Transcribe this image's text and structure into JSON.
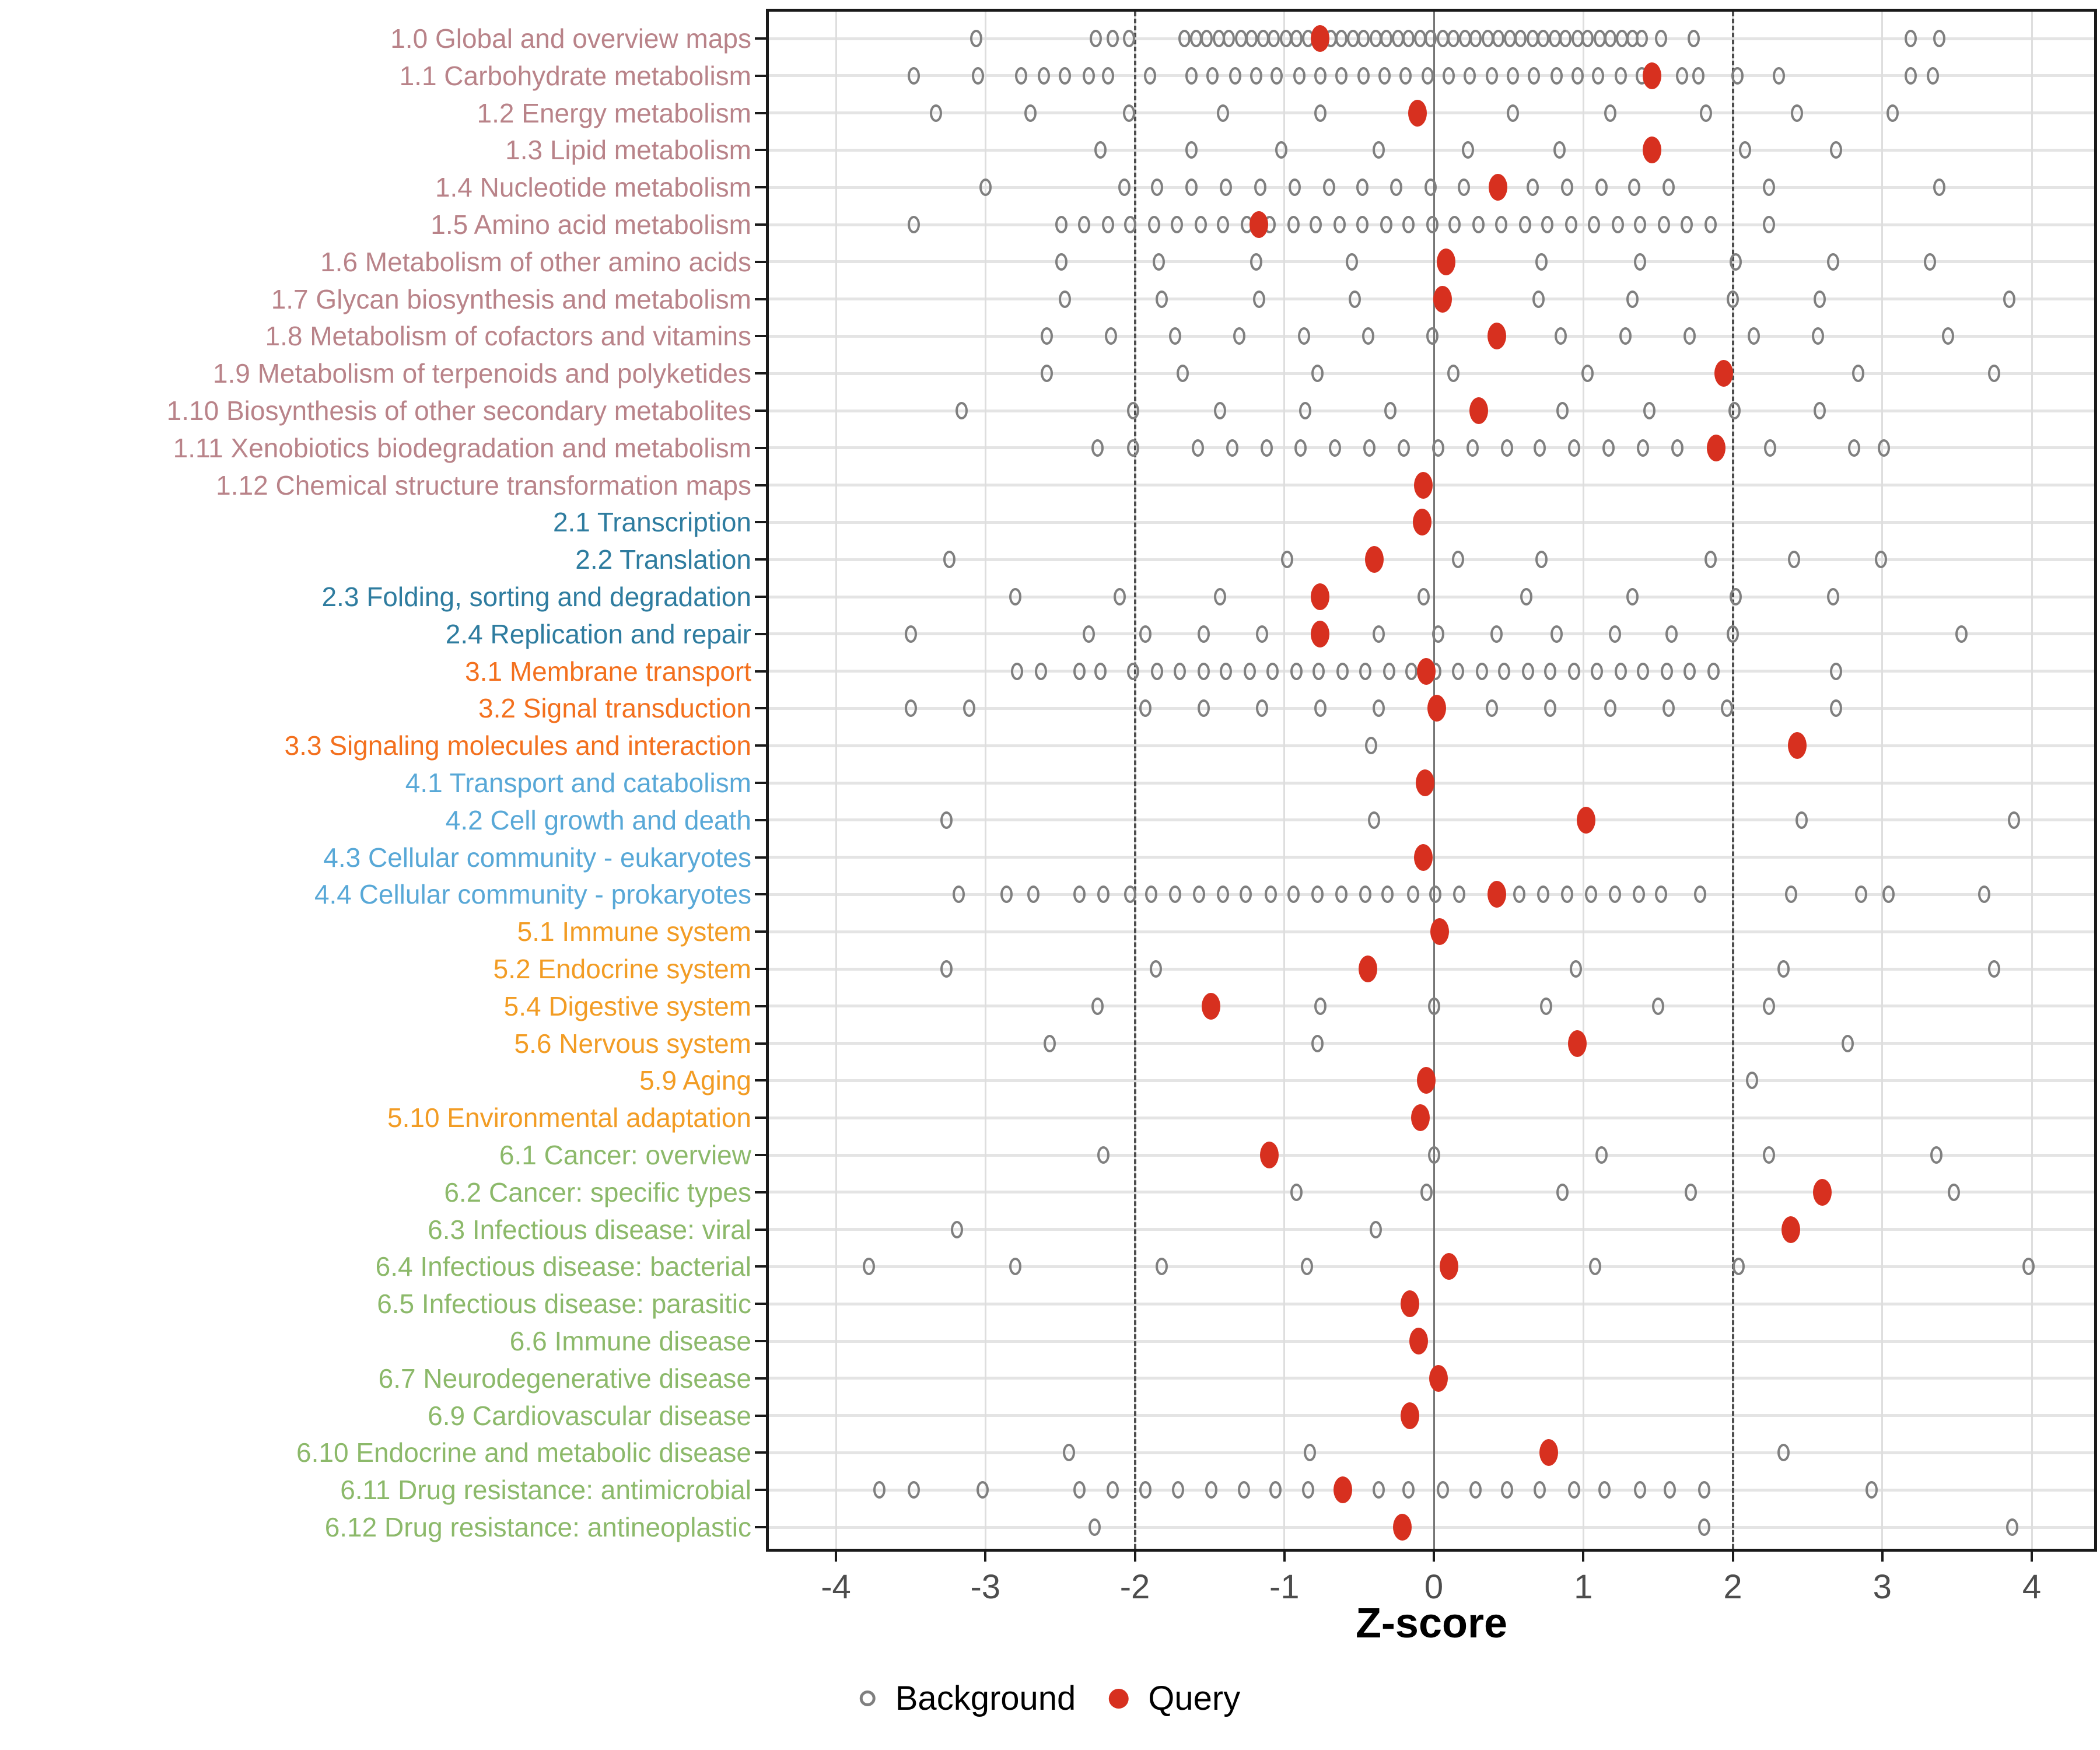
{
  "axis": {
    "xlabel": "Z-score",
    "x_ticks": [
      -4,
      -3,
      -2,
      -1,
      0,
      1,
      2,
      3,
      4
    ],
    "x_min": -4.45,
    "x_max": 4.45,
    "reference_lines": {
      "solid_at": 0,
      "dashed_at": [
        -2,
        2
      ]
    },
    "grid": "major gridlines only; horizontal line per category row"
  },
  "legend": {
    "background_label": "Background",
    "query_label": "Query",
    "position": "bottom-center"
  },
  "colors": {
    "query": "#d7301f",
    "background_stroke": "#7f7f7f",
    "grid": "#e4e4e4",
    "zero_line": "#757575",
    "dashed_line": "#4d4d4d",
    "axis_text": "#4d4d4d",
    "groups": {
      "1": "#b98389",
      "2": "#2e7c9f",
      "3": "#f3701e",
      "4": "#58a8d7",
      "5": "#f29c24",
      "6": "#8cb96a"
    }
  },
  "chart_data": {
    "type": "scatter",
    "xlabel": "Z-score",
    "xlim": [
      -4.45,
      4.45
    ],
    "series_names": [
      "Background",
      "Query"
    ],
    "rows": [
      {
        "label": "1.0 Global and overview maps",
        "group": "1",
        "query": -0.76,
        "background": [
          -3.06,
          -2.26,
          -2.15,
          -2.04,
          -1.67,
          -1.59,
          -1.52,
          -1.44,
          -1.37,
          -1.29,
          -1.22,
          -1.14,
          -1.07,
          -0.99,
          -0.92,
          -0.84,
          -0.77,
          -0.69,
          -0.62,
          -0.54,
          -0.47,
          -0.39,
          -0.32,
          -0.24,
          -0.17,
          -0.09,
          -0.02,
          0.06,
          0.13,
          0.21,
          0.28,
          0.36,
          0.43,
          0.51,
          0.58,
          0.66,
          0.73,
          0.81,
          0.88,
          0.96,
          1.03,
          1.11,
          1.18,
          1.26,
          1.33,
          1.39,
          1.52,
          1.74,
          3.19,
          3.38
        ]
      },
      {
        "label": "1.1 Carbohydrate metabolism",
        "group": "1",
        "query": 1.46,
        "background": [
          -3.48,
          -3.05,
          -2.76,
          -2.61,
          -2.47,
          -2.31,
          -2.18,
          -1.9,
          -1.62,
          -1.48,
          -1.33,
          -1.19,
          -1.05,
          -0.9,
          -0.76,
          -0.62,
          -0.47,
          -0.33,
          -0.19,
          -0.04,
          0.1,
          0.24,
          0.39,
          0.53,
          0.67,
          0.82,
          0.96,
          1.1,
          1.25,
          1.39,
          1.66,
          1.77,
          2.03,
          2.31,
          3.19,
          3.34
        ]
      },
      {
        "label": "1.2 Energy metabolism",
        "group": "1",
        "query": -0.11,
        "background": [
          -3.33,
          -2.7,
          -2.04,
          -1.41,
          -0.76,
          0.53,
          1.18,
          1.82,
          2.43,
          3.07
        ]
      },
      {
        "label": "1.3 Lipid metabolism",
        "group": "1",
        "query": 1.46,
        "background": [
          -2.23,
          -1.62,
          -1.02,
          -0.37,
          0.23,
          0.84,
          2.08,
          2.69
        ]
      },
      {
        "label": "1.4 Nucleotide metabolism",
        "group": "1",
        "query": 0.43,
        "background": [
          -3.0,
          -2.07,
          -1.85,
          -1.62,
          -1.39,
          -1.16,
          -0.93,
          -0.7,
          -0.48,
          -0.25,
          -0.02,
          0.2,
          0.66,
          0.89,
          1.12,
          1.34,
          1.57,
          2.24,
          3.38
        ]
      },
      {
        "label": "1.5 Amino acid metabolism",
        "group": "1",
        "query": -1.17,
        "background": [
          -3.48,
          -2.49,
          -2.34,
          -2.18,
          -2.03,
          -1.87,
          -1.72,
          -1.56,
          -1.41,
          -1.25,
          -1.1,
          -0.94,
          -0.79,
          -0.63,
          -0.48,
          -0.32,
          -0.17,
          -0.01,
          0.14,
          0.3,
          0.45,
          0.61,
          0.76,
          0.92,
          1.07,
          1.23,
          1.38,
          1.54,
          1.69,
          1.85,
          2.24
        ]
      },
      {
        "label": "1.6 Metabolism of other amino acids",
        "group": "1",
        "query": 0.08,
        "background": [
          -2.49,
          -1.84,
          -1.19,
          -0.55,
          0.72,
          1.38,
          2.02,
          2.67,
          3.32
        ]
      },
      {
        "label": "1.7 Glycan biosynthesis and metabolism",
        "group": "1",
        "query": 0.06,
        "background": [
          -2.47,
          -1.82,
          -1.17,
          -0.53,
          0.7,
          1.33,
          2.0,
          2.58,
          3.85
        ]
      },
      {
        "label": "1.8 Metabolism of cofactors and vitamins",
        "group": "1",
        "query": 0.42,
        "background": [
          -2.59,
          -2.16,
          -1.73,
          -1.3,
          -0.87,
          -0.44,
          -0.01,
          0.85,
          1.28,
          1.71,
          2.14,
          2.57,
          3.44
        ]
      },
      {
        "label": "1.9 Metabolism of terpenoids and polyketides",
        "group": "1",
        "query": 1.94,
        "background": [
          -2.59,
          -1.68,
          -0.78,
          0.13,
          1.03,
          2.84,
          3.75
        ]
      },
      {
        "label": "1.10 Biosynthesis of other secondary metabolites",
        "group": "1",
        "query": 0.3,
        "background": [
          -3.16,
          -2.01,
          -1.43,
          -0.86,
          -0.29,
          0.86,
          1.44,
          2.01,
          2.58
        ]
      },
      {
        "label": "1.11 Xenobiotics biodegradation and metabolism",
        "group": "1",
        "query": 1.89,
        "background": [
          -2.25,
          -2.01,
          -1.58,
          -1.35,
          -1.12,
          -0.89,
          -0.66,
          -0.43,
          -0.2,
          0.03,
          0.26,
          0.49,
          0.71,
          0.94,
          1.17,
          1.4,
          1.63,
          2.25,
          2.81,
          3.01
        ]
      },
      {
        "label": "1.12 Chemical structure transformation maps",
        "group": "1",
        "query": -0.07,
        "background": []
      },
      {
        "label": "2.1 Transcription",
        "group": "2",
        "query": -0.08,
        "background": []
      },
      {
        "label": "2.2 Translation",
        "group": "2",
        "query": -0.4,
        "background": [
          -3.24,
          -0.98,
          0.16,
          0.72,
          1.85,
          2.41,
          2.99
        ]
      },
      {
        "label": "2.3 Folding, sorting and degradation",
        "group": "2",
        "query": -0.76,
        "background": [
          -2.8,
          -2.1,
          -1.43,
          -0.07,
          0.62,
          1.33,
          2.02,
          2.67
        ]
      },
      {
        "label": "2.4 Replication and repair",
        "group": "2",
        "query": -0.76,
        "background": [
          -3.5,
          -2.31,
          -1.93,
          -1.54,
          -1.15,
          -0.37,
          0.03,
          0.42,
          0.82,
          1.21,
          1.59,
          2.0,
          3.53
        ]
      },
      {
        "label": "3.1 Membrane transport",
        "group": "3",
        "query": -0.05,
        "background": [
          -2.79,
          -2.63,
          -2.37,
          -2.23,
          -2.01,
          -1.85,
          -1.7,
          -1.54,
          -1.39,
          -1.23,
          -1.08,
          -0.92,
          -0.77,
          -0.61,
          -0.46,
          -0.3,
          -0.15,
          0.01,
          0.16,
          0.32,
          0.47,
          0.63,
          0.78,
          0.94,
          1.09,
          1.25,
          1.4,
          1.56,
          1.71,
          1.87,
          2.69
        ]
      },
      {
        "label": "3.2 Signal transduction",
        "group": "3",
        "query": 0.02,
        "background": [
          -3.5,
          -3.11,
          -1.93,
          -1.54,
          -1.15,
          -0.76,
          -0.37,
          0.39,
          0.78,
          1.18,
          1.57,
          1.96,
          2.69
        ]
      },
      {
        "label": "3.3 Signaling molecules and interaction",
        "group": "3",
        "query": 2.43,
        "background": [
          -0.42
        ]
      },
      {
        "label": "4.1 Transport and catabolism",
        "group": "4",
        "query": -0.06,
        "background": []
      },
      {
        "label": "4.2 Cell growth and death",
        "group": "4",
        "query": 1.02,
        "background": [
          -3.26,
          -0.4,
          2.46,
          3.88
        ]
      },
      {
        "label": "4.3 Cellular community - eukaryotes",
        "group": "4",
        "query": -0.07,
        "background": []
      },
      {
        "label": "4.4 Cellular community - prokaryotes",
        "group": "4",
        "query": 0.42,
        "background": [
          -3.18,
          -2.86,
          -2.68,
          -2.37,
          -2.21,
          -2.03,
          -1.89,
          -1.73,
          -1.57,
          -1.41,
          -1.26,
          -1.09,
          -0.94,
          -0.78,
          -0.62,
          -0.46,
          -0.31,
          -0.14,
          0.01,
          0.17,
          0.57,
          0.73,
          0.89,
          1.05,
          1.21,
          1.37,
          1.52,
          1.78,
          2.39,
          2.86,
          3.04,
          3.68
        ]
      },
      {
        "label": "5.1 Immune system",
        "group": "5",
        "query": 0.04,
        "background": []
      },
      {
        "label": "5.2 Endocrine system",
        "group": "5",
        "query": -0.44,
        "background": [
          -3.26,
          -1.86,
          0.95,
          2.34,
          3.75
        ]
      },
      {
        "label": "5.4 Digestive system",
        "group": "5",
        "query": -1.49,
        "background": [
          -2.25,
          -0.76,
          0.0,
          0.75,
          1.5,
          2.24
        ]
      },
      {
        "label": "5.6 Nervous system",
        "group": "5",
        "query": 0.96,
        "background": [
          -2.57,
          -0.78,
          2.77
        ]
      },
      {
        "label": "5.9 Aging",
        "group": "5",
        "query": -0.05,
        "background": [
          2.13
        ]
      },
      {
        "label": "5.10 Environmental adaptation",
        "group": "5",
        "query": -0.09,
        "background": []
      },
      {
        "label": "6.1 Cancer: overview",
        "group": "6",
        "query": -1.1,
        "background": [
          -2.21,
          0.0,
          1.12,
          2.24,
          3.36
        ]
      },
      {
        "label": "6.2 Cancer: specific types",
        "group": "6",
        "query": 2.6,
        "background": [
          -0.92,
          -0.05,
          0.86,
          1.72,
          3.48
        ]
      },
      {
        "label": "6.3 Infectious disease: viral",
        "group": "6",
        "query": 2.39,
        "background": [
          -3.19,
          -0.39
        ]
      },
      {
        "label": "6.4 Infectious disease: bacterial",
        "group": "6",
        "query": 0.1,
        "background": [
          -3.78,
          -2.8,
          -1.82,
          -0.85,
          1.08,
          2.04,
          3.98
        ]
      },
      {
        "label": "6.5 Infectious disease: parasitic",
        "group": "6",
        "query": -0.16,
        "background": []
      },
      {
        "label": "6.6 Immune disease",
        "group": "6",
        "query": -0.1,
        "background": []
      },
      {
        "label": "6.7 Neurodegenerative disease",
        "group": "6",
        "query": 0.03,
        "background": []
      },
      {
        "label": "6.9 Cardiovascular disease",
        "group": "6",
        "query": -0.16,
        "background": []
      },
      {
        "label": "6.10 Endocrine and metabolic disease",
        "group": "6",
        "query": 0.77,
        "background": [
          -2.44,
          -0.83,
          2.34
        ]
      },
      {
        "label": "6.11 Drug resistance: antimicrobial",
        "group": "6",
        "query": -0.61,
        "background": [
          -3.71,
          -3.48,
          -3.02,
          -2.37,
          -2.15,
          -1.93,
          -1.71,
          -1.49,
          -1.27,
          -1.06,
          -0.84,
          -0.37,
          -0.17,
          0.06,
          0.28,
          0.49,
          0.71,
          0.94,
          1.14,
          1.38,
          1.58,
          1.81,
          2.93
        ]
      },
      {
        "label": "6.12 Drug resistance: antineoplastic",
        "group": "6",
        "query": -0.21,
        "background": [
          -2.27,
          1.81,
          3.87
        ]
      }
    ]
  }
}
